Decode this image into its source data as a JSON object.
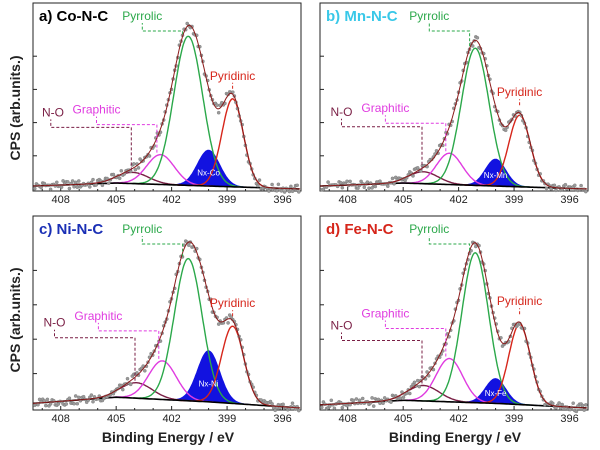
{
  "figure": {
    "ylabel": "CPS (arb.units.)",
    "xlabel": "Binding Energy / eV"
  },
  "chart_data": [
    {
      "type": "line",
      "title": "a) Co-N-C",
      "title_color": "#000000",
      "x_ticks": [
        408,
        405,
        402,
        399,
        396
      ],
      "xlim": [
        409.5,
        395
      ],
      "ylim": [
        0,
        1.1
      ],
      "series": [
        {
          "kind": "N-O",
          "center": 404.1,
          "height": 0.075,
          "width": 0.85
        },
        {
          "kind": "Graphitic",
          "center": 402.6,
          "height": 0.2,
          "width": 0.75
        },
        {
          "kind": "Pyrrolic",
          "center": 401.1,
          "height": 1.0,
          "width": 0.78
        },
        {
          "kind": "N-Metal",
          "center": 400.0,
          "height": 0.24,
          "width": 0.6
        },
        {
          "kind": "Pyridinic",
          "center": 398.7,
          "height": 0.59,
          "width": 0.58
        }
      ],
      "background": {
        "at": [
          409.5,
          405,
          400,
          395
        ],
        "values": [
          0.02,
          0.04,
          0.02,
          0.0
        ]
      },
      "annotations": [
        {
          "text": "Pyrrolic",
          "series": "Pyrrolic",
          "color": "#2ba84a"
        },
        {
          "text": "Graphitic",
          "series": "Graphitic",
          "color": "#e03ce0"
        },
        {
          "text": "N-O",
          "series": "N-O",
          "color": "#7a1f45"
        },
        {
          "text": "Pyridinic",
          "series": "Pyridinic",
          "color": "#d6261b"
        }
      ],
      "metal_peak_label": "Nx-Co"
    },
    {
      "type": "line",
      "title": "b) Mn-N-C",
      "title_color": "#39c8e8",
      "x_ticks": [
        408,
        405,
        402,
        399,
        396
      ],
      "xlim": [
        409.5,
        395
      ],
      "ylim": [
        0,
        1.1
      ],
      "series": [
        {
          "kind": "N-O",
          "center": 403.9,
          "height": 0.08,
          "width": 0.8
        },
        {
          "kind": "Graphitic",
          "center": 402.5,
          "height": 0.21,
          "width": 0.7
        },
        {
          "kind": "Pyrrolic",
          "center": 401.1,
          "height": 0.92,
          "width": 0.75
        },
        {
          "kind": "N-Metal",
          "center": 400.0,
          "height": 0.18,
          "width": 0.55
        },
        {
          "kind": "Pyridinic",
          "center": 398.7,
          "height": 0.48,
          "width": 0.58
        }
      ],
      "background": {
        "at": [
          409.5,
          405,
          400,
          395
        ],
        "values": [
          0.02,
          0.04,
          0.02,
          0.0
        ]
      },
      "annotations": [
        {
          "text": "Pyrrolic",
          "series": "Pyrrolic",
          "color": "#2ba84a"
        },
        {
          "text": "Graphitic",
          "series": "Graphitic",
          "color": "#e03ce0"
        },
        {
          "text": "N-O",
          "series": "N-O",
          "color": "#7a1f45"
        },
        {
          "text": "Pyridinic",
          "series": "Pyridinic",
          "color": "#d6261b"
        }
      ],
      "metal_peak_label": "Nx-Mn"
    },
    {
      "type": "line",
      "title": "c) Ni-N-C",
      "title_color": "#1a2fb5",
      "x_ticks": [
        408,
        405,
        402,
        399,
        396
      ],
      "xlim": [
        409.5,
        395
      ],
      "ylim": [
        0,
        1.1
      ],
      "series": [
        {
          "kind": "N-O",
          "center": 403.9,
          "height": 0.1,
          "width": 0.85
        },
        {
          "kind": "Graphitic",
          "center": 402.5,
          "height": 0.25,
          "width": 0.75
        },
        {
          "kind": "Pyrrolic",
          "center": 401.1,
          "height": 0.92,
          "width": 0.75
        },
        {
          "kind": "N-Metal",
          "center": 400.0,
          "height": 0.33,
          "width": 0.6
        },
        {
          "kind": "Pyridinic",
          "center": 398.7,
          "height": 0.5,
          "width": 0.6
        }
      ],
      "background": {
        "at": [
          409.5,
          405,
          400,
          395
        ],
        "values": [
          0.03,
          0.07,
          0.04,
          0.0
        ]
      },
      "annotations": [
        {
          "text": "Pyrrolic",
          "series": "Pyrrolic",
          "color": "#2ba84a"
        },
        {
          "text": "Graphitic",
          "series": "Graphitic",
          "color": "#e03ce0"
        },
        {
          "text": "N-O",
          "series": "N-O",
          "color": "#7a1f45"
        },
        {
          "text": "Pyridinic",
          "series": "Pyridinic",
          "color": "#d6261b"
        }
      ],
      "metal_peak_label": "Nx-Ni"
    },
    {
      "type": "line",
      "title": "d) Fe-N-C",
      "title_color": "#d6261b",
      "x_ticks": [
        408,
        405,
        402,
        399,
        396
      ],
      "xlim": [
        409.5,
        395
      ],
      "ylim": [
        0,
        1.1
      ],
      "series": [
        {
          "kind": "N-O",
          "center": 403.9,
          "height": 0.1,
          "width": 0.85
        },
        {
          "kind": "Graphitic",
          "center": 402.5,
          "height": 0.28,
          "width": 0.72
        },
        {
          "kind": "Pyrrolic",
          "center": 401.1,
          "height": 0.97,
          "width": 0.72
        },
        {
          "kind": "N-Metal",
          "center": 400.0,
          "height": 0.16,
          "width": 0.55
        },
        {
          "kind": "Pyridinic",
          "center": 398.7,
          "height": 0.52,
          "width": 0.58
        }
      ],
      "background": {
        "at": [
          409.5,
          405,
          400,
          395
        ],
        "values": [
          0.02,
          0.05,
          0.03,
          0.0
        ]
      },
      "annotations": [
        {
          "text": "Pyrrolic",
          "series": "Pyrrolic",
          "color": "#2ba84a"
        },
        {
          "text": "Graphitic",
          "series": "Graphitic",
          "color": "#e03ce0"
        },
        {
          "text": "N-O",
          "series": "N-O",
          "color": "#7a1f45"
        },
        {
          "text": "Pyridinic",
          "series": "Pyridinic",
          "color": "#d6261b"
        }
      ],
      "metal_peak_label": "Nx-Fe"
    }
  ],
  "colors": {
    "N-O": "#7a1f45",
    "Graphitic": "#e03ce0",
    "Pyrrolic": "#2ba84a",
    "Pyridinic": "#d6261b",
    "N-Metal": "#1212e0",
    "background": "#000000",
    "data": "#8c8c8c",
    "envelope": "#8b1a1a"
  }
}
